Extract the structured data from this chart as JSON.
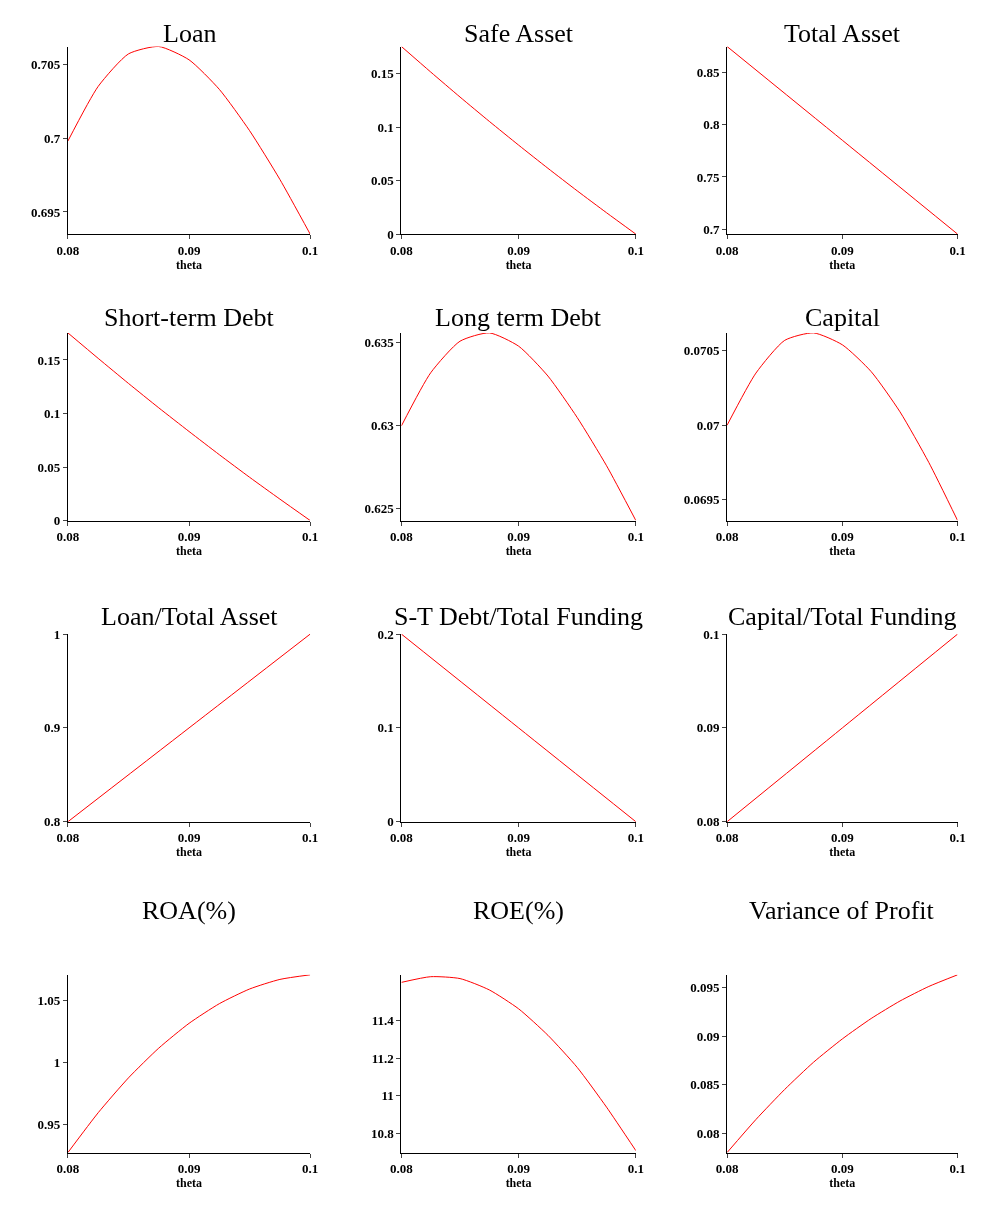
{
  "chart_data": [
    {
      "type": "line",
      "title": "Loan",
      "xlabel": "theta",
      "x": [
        0.08,
        0.0825,
        0.085,
        0.0875,
        0.09,
        0.0925,
        0.095,
        0.0975,
        0.1
      ],
      "xlim": [
        0.08,
        0.1
      ],
      "xticks": [
        0.08,
        0.09,
        0.1
      ],
      "ylim": [
        0.6935,
        0.7062
      ],
      "yticks": [
        0.695,
        0.7,
        0.705
      ],
      "series": [
        {
          "color": "#ff0000",
          "values": [
            0.6998,
            0.7035,
            0.7057,
            0.7062,
            0.7053,
            0.7033,
            0.7005,
            0.6972,
            0.6935
          ]
        }
      ]
    },
    {
      "type": "line",
      "title": "Safe Asset",
      "xlabel": "theta",
      "x": [
        0.08,
        0.0825,
        0.085,
        0.0875,
        0.09,
        0.0925,
        0.095,
        0.0975,
        0.1
      ],
      "xlim": [
        0.08,
        0.1
      ],
      "xticks": [
        0.08,
        0.09,
        0.1
      ],
      "ylim": [
        0,
        0.1756
      ],
      "yticks": [
        0,
        0.05,
        0.1,
        0.15
      ],
      "series": [
        {
          "color": "#ff0000",
          "values": [
            0.1756,
            0.1517,
            0.1283,
            0.1055,
            0.0833,
            0.0616,
            0.0405,
            0.02,
            0
          ]
        }
      ]
    },
    {
      "type": "line",
      "title": "Total Asset",
      "xlabel": "theta",
      "x": [
        0.08,
        0.09,
        0.1
      ],
      "xlim": [
        0.08,
        0.1
      ],
      "xticks": [
        0.08,
        0.09,
        0.1
      ],
      "ylim": [
        0.6955,
        0.8744
      ],
      "yticks": [
        0.7,
        0.75,
        0.8,
        0.85
      ],
      "series": [
        {
          "color": "#ff0000",
          "values": [
            0.8744,
            0.785,
            0.6955
          ]
        }
      ]
    },
    {
      "type": "line",
      "title": "Short-term Debt",
      "xlabel": "theta",
      "x": [
        0.08,
        0.0825,
        0.085,
        0.0875,
        0.09,
        0.0925,
        0.095,
        0.0975,
        0.1
      ],
      "xlim": [
        0.08,
        0.1
      ],
      "xticks": [
        0.08,
        0.09,
        0.1
      ],
      "ylim": [
        0,
        0.1753
      ],
      "yticks": [
        0,
        0.05,
        0.1,
        0.15
      ],
      "series": [
        {
          "color": "#ff0000",
          "values": [
            0.1753,
            0.1515,
            0.1281,
            0.1053,
            0.0832,
            0.0615,
            0.0404,
            0.02,
            0
          ]
        }
      ]
    },
    {
      "type": "line",
      "title": "Long term Debt",
      "xlabel": "theta",
      "x": [
        0.08,
        0.0825,
        0.085,
        0.0875,
        0.09,
        0.0925,
        0.095,
        0.0975,
        0.1
      ],
      "xlim": [
        0.08,
        0.1
      ],
      "xticks": [
        0.08,
        0.09,
        0.1
      ],
      "ylim": [
        0.6243,
        0.6356
      ],
      "yticks": [
        0.625,
        0.63,
        0.635
      ],
      "series": [
        {
          "color": "#ff0000",
          "values": [
            0.63,
            0.6332,
            0.6351,
            0.6356,
            0.6348,
            0.633,
            0.6305,
            0.6276,
            0.6243
          ]
        }
      ]
    },
    {
      "type": "line",
      "title": "Capital",
      "xlabel": "theta",
      "x": [
        0.08,
        0.0825,
        0.085,
        0.0875,
        0.09,
        0.0925,
        0.095,
        0.0975,
        0.1
      ],
      "xlim": [
        0.08,
        0.1
      ],
      "xticks": [
        0.08,
        0.09,
        0.1
      ],
      "ylim": [
        0.06936,
        0.07062
      ],
      "yticks": [
        0.0695,
        0.07,
        0.0705
      ],
      "series": [
        {
          "color": "#ff0000",
          "values": [
            0.07,
            0.07035,
            0.07057,
            0.07062,
            0.07054,
            0.07036,
            0.07009,
            0.06975,
            0.06936
          ]
        }
      ]
    },
    {
      "type": "line",
      "title": "Loan/Total Asset",
      "xlabel": "theta",
      "x": [
        0.08,
        0.09,
        0.1
      ],
      "xlim": [
        0.08,
        0.1
      ],
      "xticks": [
        0.08,
        0.09,
        0.1
      ],
      "ylim": [
        0.8,
        1
      ],
      "yticks": [
        0.8,
        0.9,
        1
      ],
      "series": [
        {
          "color": "#ff0000",
          "values": [
            0.8,
            0.9,
            1
          ]
        }
      ]
    },
    {
      "type": "line",
      "title": "S-T Debt/Total Funding",
      "xlabel": "theta",
      "x": [
        0.08,
        0.09,
        0.1
      ],
      "xlim": [
        0.08,
        0.1
      ],
      "xticks": [
        0.08,
        0.09,
        0.1
      ],
      "ylim": [
        0,
        0.2
      ],
      "yticks": [
        0,
        0.1,
        0.2
      ],
      "series": [
        {
          "color": "#ff0000",
          "values": [
            0.2,
            0.1,
            0
          ]
        }
      ]
    },
    {
      "type": "line",
      "title": "Capital/Total Funding",
      "xlabel": "theta",
      "x": [
        0.08,
        0.09,
        0.1
      ],
      "xlim": [
        0.08,
        0.1
      ],
      "xticks": [
        0.08,
        0.09,
        0.1
      ],
      "ylim": [
        0.08,
        0.1
      ],
      "yticks": [
        0.08,
        0.09,
        0.1
      ],
      "series": [
        {
          "color": "#ff0000",
          "values": [
            0.08,
            0.09,
            0.1
          ]
        }
      ]
    },
    {
      "type": "line",
      "title": "ROA(%)",
      "xlabel": "theta",
      "x": [
        0.08,
        0.0825,
        0.085,
        0.0875,
        0.09,
        0.0925,
        0.095,
        0.0975,
        0.1
      ],
      "xlim": [
        0.08,
        0.1
      ],
      "xticks": [
        0.08,
        0.09,
        0.1
      ],
      "ylim": [
        0.9277,
        1.0705
      ],
      "yticks": [
        0.95,
        1,
        1.05
      ],
      "series": [
        {
          "color": "#ff0000",
          "values": [
            0.9277,
            0.9597,
            0.9877,
            1.0116,
            1.0315,
            1.0473,
            1.0591,
            1.0668,
            1.0705
          ]
        }
      ]
    },
    {
      "type": "line",
      "title": "ROE(%)",
      "xlabel": "theta",
      "x": [
        0.08,
        0.0825,
        0.085,
        0.0875,
        0.09,
        0.0925,
        0.095,
        0.0975,
        0.1
      ],
      "xlim": [
        0.08,
        0.1
      ],
      "xticks": [
        0.08,
        0.09,
        0.1
      ],
      "ylim": [
        10.7,
        11.64
      ],
      "yticks": [
        10.8,
        11,
        11.2,
        11.4
      ],
      "series": [
        {
          "color": "#ff0000",
          "values": [
            11.6,
            11.63,
            11.62,
            11.56,
            11.46,
            11.32,
            11.15,
            10.94,
            10.71
          ]
        }
      ]
    },
    {
      "type": "line",
      "title": "Variance of Profit",
      "xlabel": "theta",
      "x": [
        0.08,
        0.0825,
        0.085,
        0.0875,
        0.09,
        0.0925,
        0.095,
        0.0975,
        0.1
      ],
      "xlim": [
        0.08,
        0.1
      ],
      "xticks": [
        0.08,
        0.09,
        0.1
      ],
      "ylim": [
        0.078,
        0.0963
      ],
      "yticks": [
        0.08,
        0.085,
        0.09,
        0.095
      ],
      "series": [
        {
          "color": "#ff0000",
          "values": [
            0.078,
            0.0814,
            0.0845,
            0.0873,
            0.0897,
            0.0918,
            0.0936,
            0.0951,
            0.0963
          ]
        }
      ]
    }
  ]
}
